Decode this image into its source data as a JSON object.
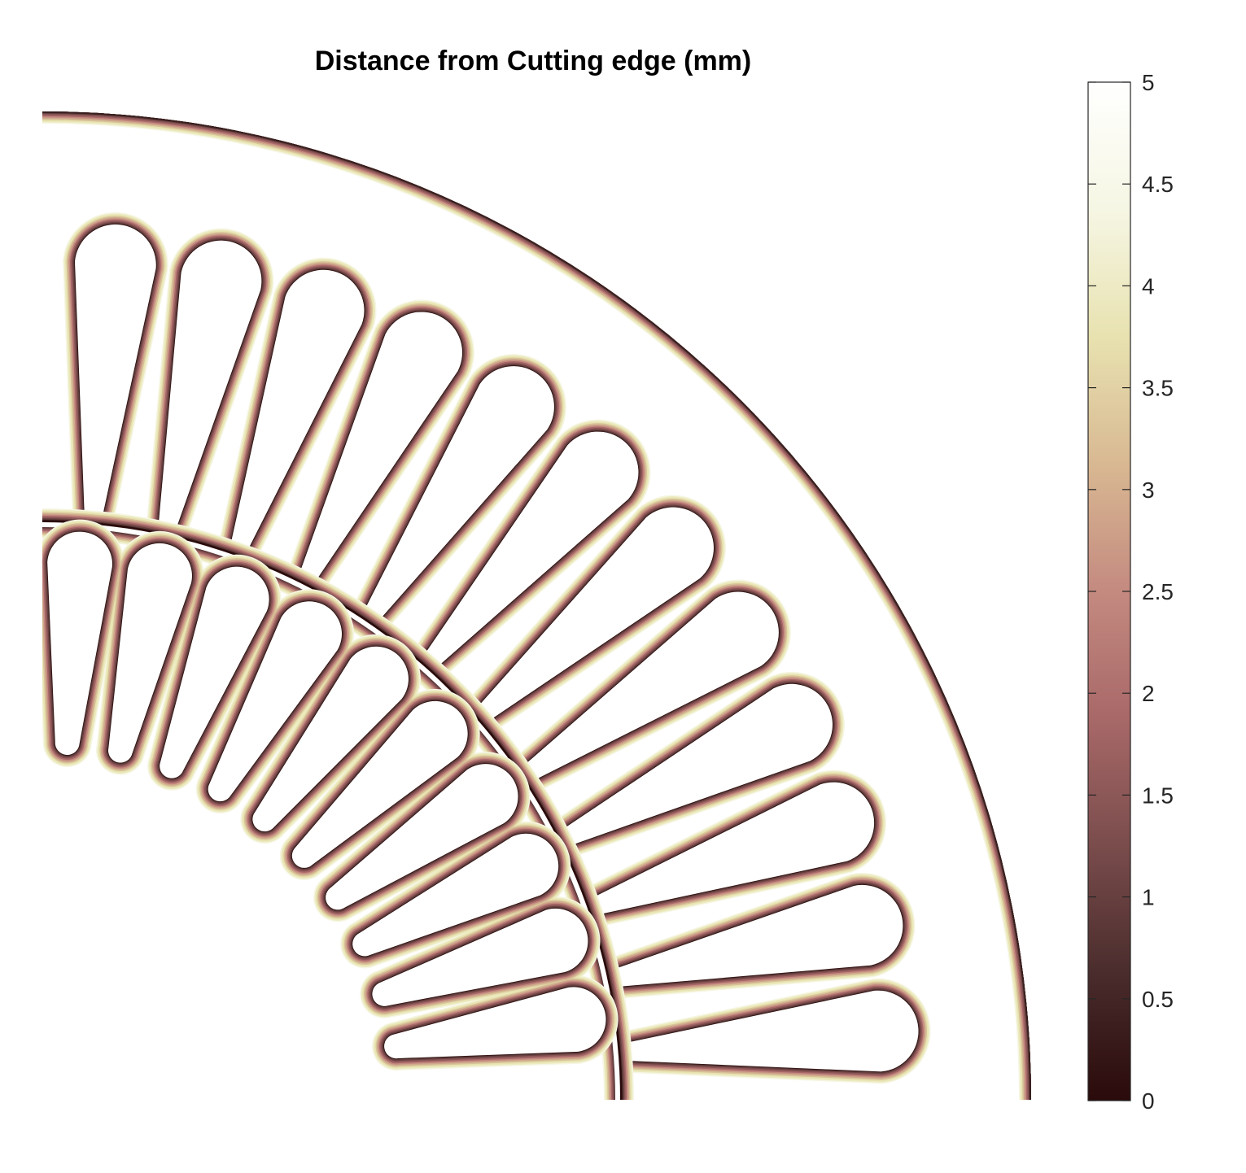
{
  "chart_data": {
    "type": "heatmap",
    "title": "Distance from Cutting edge (mm)",
    "xlabel": "",
    "ylabel": "",
    "colorbar": {
      "range": [
        0,
        5
      ],
      "ticks": [
        0,
        0.5,
        1,
        1.5,
        2,
        2.5,
        3,
        3.5,
        4,
        4.5,
        5
      ],
      "tick_labels": [
        "0",
        "0.5",
        "1",
        "1.5",
        "2",
        "2.5",
        "3",
        "3.5",
        "4",
        "4.5",
        "5"
      ],
      "placement": "right",
      "colormap": [
        "#2a0a0a",
        "#4a2c2c",
        "#7a4c4c",
        "#a86868",
        "#c48a80",
        "#d8b892",
        "#e8e2b0",
        "#f6f6e4",
        "#ffffff"
      ]
    },
    "geometry": {
      "view": "quarter cross-section",
      "stator_slots": 12,
      "rotor_slots": 10
    }
  }
}
